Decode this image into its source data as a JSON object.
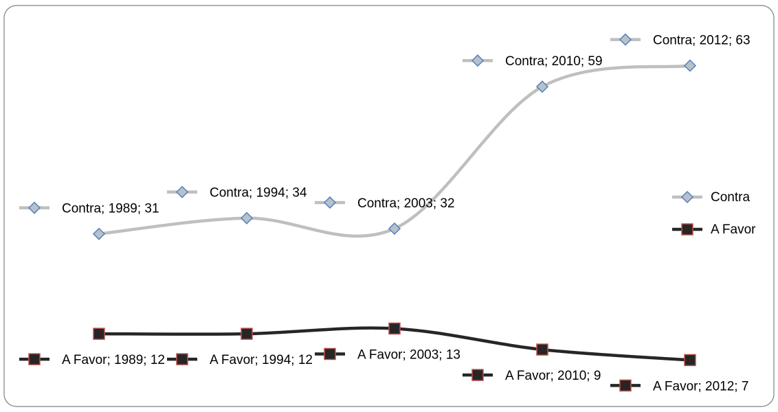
{
  "chart_data": {
    "type": "line",
    "categories": [
      "1989",
      "1994",
      "2003",
      "2010",
      "2012"
    ],
    "ylim": [
      0,
      70
    ],
    "legend": "right",
    "series": [
      {
        "name": "Contra",
        "color": "#bfbfbf",
        "marker": "diamond",
        "marker_color": "#b9c0c9",
        "marker_edge": "#4f81bd",
        "values": [
          31,
          34,
          32,
          59,
          63
        ],
        "value_labels": [
          "Contra; 1989; 31",
          "Contra; 1994; 34",
          "Contra; 2003; 32",
          "Contra; 2010; 59",
          "Contra; 2012; 63"
        ]
      },
      {
        "name": "A Favor",
        "color": "#262626",
        "marker": "square",
        "marker_color": "#262626",
        "marker_edge": "#c0504d",
        "values": [
          12,
          12,
          13,
          9,
          7
        ],
        "value_labels": [
          "A Favor; 1989; 12",
          "A Favor; 1994; 12",
          "A Favor; 2003; 13",
          "A Favor; 2010; 9",
          "A Favor; 2012; 7"
        ]
      }
    ]
  }
}
